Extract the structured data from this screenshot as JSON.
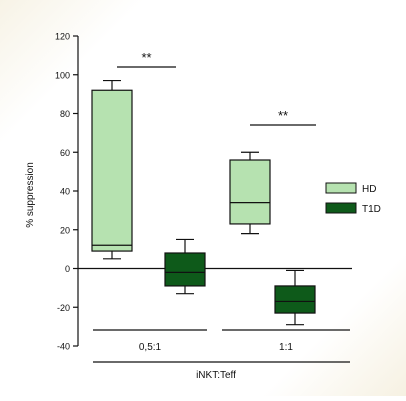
{
  "chart_data": {
    "type": "boxplot",
    "ylabel": "% suppression",
    "xlabel": "iNKT:Teff",
    "ylim": [
      -40,
      120
    ],
    "yticks": [
      -40,
      -20,
      0,
      20,
      40,
      60,
      80,
      100,
      120
    ],
    "ytick_labels": [
      "-40",
      "-20",
      "0",
      "20",
      "40",
      "60",
      "80",
      "100",
      "120"
    ],
    "categories": [
      "0,5:1",
      "1:1"
    ],
    "series": [
      {
        "name": "HD",
        "color": "#b6e2b0",
        "boxes": [
          {
            "category": "0,5:1",
            "min": 5,
            "q1": 9,
            "median": 12,
            "q3": 92,
            "max": 97
          },
          {
            "category": "1:1",
            "min": 18,
            "q1": 23,
            "median": 34,
            "q3": 56,
            "max": 60
          }
        ]
      },
      {
        "name": "T1D",
        "color": "#0e5a1a",
        "boxes": [
          {
            "category": "0,5:1",
            "min": -13,
            "q1": -9,
            "median": -2,
            "q3": 8,
            "max": 15
          },
          {
            "category": "1:1",
            "min": -29,
            "q1": -23,
            "median": -17,
            "q3": -9,
            "max": -1
          }
        ]
      }
    ],
    "annotations": [
      {
        "text": "**",
        "category": "0,5:1"
      },
      {
        "text": "**",
        "category": "1:1"
      }
    ],
    "legend": {
      "position": "right",
      "entries": [
        "HD",
        "T1D"
      ]
    },
    "grid": false
  }
}
